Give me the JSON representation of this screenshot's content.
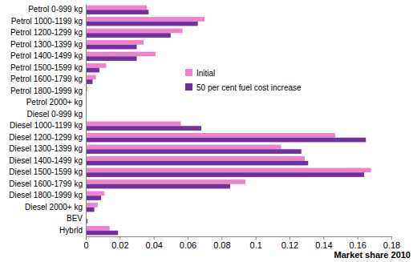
{
  "chart_data": {
    "type": "bar",
    "orientation": "horizontal",
    "xlabel": "Market share 2010",
    "categories": [
      "Petrol 0-999 kg",
      "Petrol 1000-1199 kg",
      "Petrol 1200-1299 kg",
      "Petrol 1300-1399 kg",
      "Petrol 1400-1499 kg",
      "Petrol 1500-1599 kg",
      "Petrol 1600-1799 kg",
      "Petrol 1800-1999 kg",
      "Petrol 2000+ kg",
      "Diesel 0-999 kg",
      "Diesel 1000-1199 kg",
      "Diesel 1200-1299 kg",
      "Diesel 1300-1399 kg",
      "Diesel 1400-1499 kg",
      "Diesel 1500-1599 kg",
      "Diesel 1600-1799 kg",
      "Diesel 1800-1999 kg",
      "Diesel 2000+ kg",
      "BEV",
      "Hybrid"
    ],
    "series": [
      {
        "name": "Initial",
        "color": "#ee82cc",
        "values": [
          0.036,
          0.07,
          0.057,
          0.034,
          0.041,
          0.012,
          0.006,
          0.001,
          0.0005,
          0.0005,
          0.056,
          0.147,
          0.115,
          0.129,
          0.168,
          0.094,
          0.011,
          0.007,
          0.0005,
          0.014
        ]
      },
      {
        "name": "50 per cent fuel cost increase",
        "color": "#7030a0",
        "values": [
          0.037,
          0.066,
          0.05,
          0.03,
          0.03,
          0.008,
          0.004,
          0.0005,
          0.0003,
          0.0005,
          0.068,
          0.165,
          0.127,
          0.131,
          0.164,
          0.085,
          0.009,
          0.005,
          0.001,
          0.019
        ]
      }
    ],
    "xlim": [
      0,
      0.18
    ],
    "xticks": [
      0,
      0.02,
      0.04,
      0.06,
      0.08,
      0.1,
      0.12,
      0.14,
      0.16,
      0.18
    ],
    "grid": false,
    "legend": "center"
  }
}
